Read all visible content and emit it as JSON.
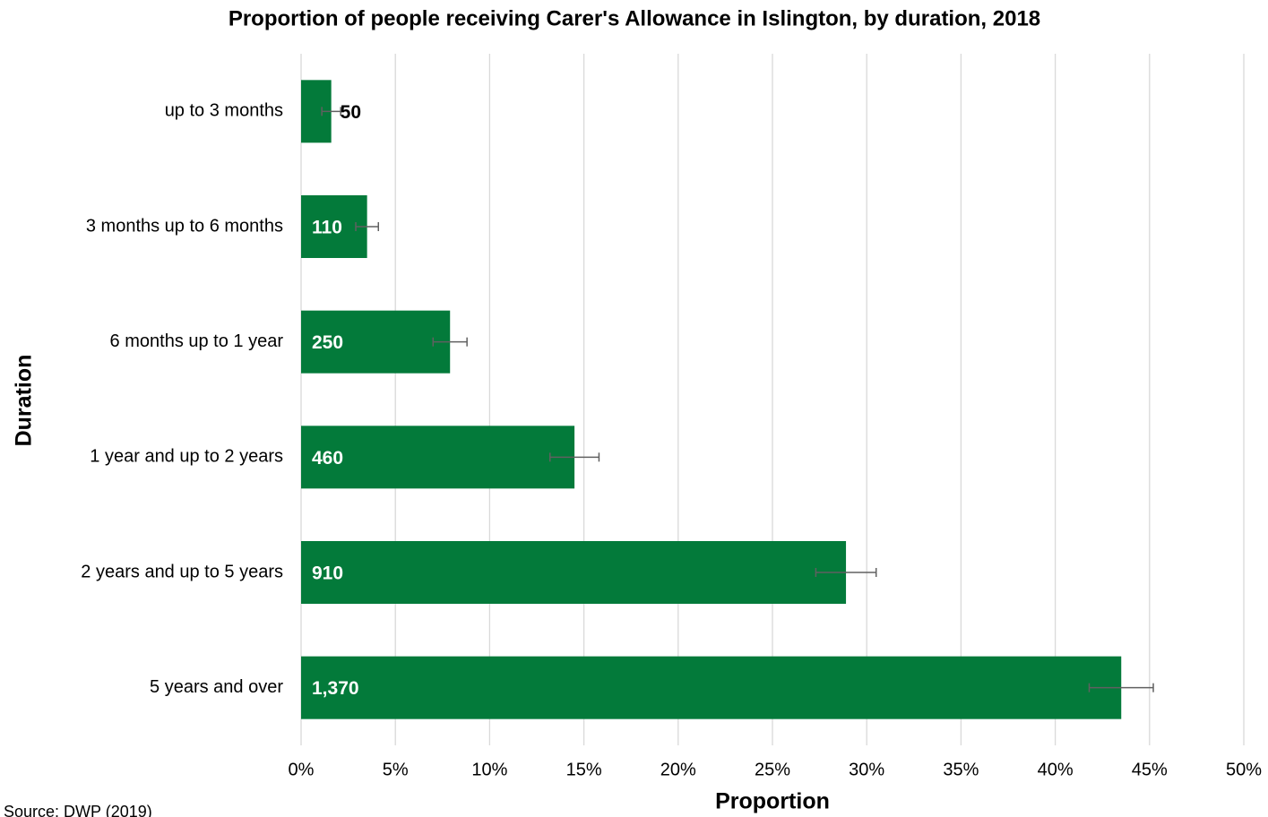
{
  "chart_data": {
    "type": "hbar",
    "title": "Proportion of people receiving Carer's Allowance in Islington, by duration, 2018",
    "x_label": "Proportion",
    "y_label": "Duration",
    "source": "Source: DWP (2019)",
    "categories": [
      "up to 3 months",
      "3 months up to 6 months",
      "6 months up to 1 year",
      "1 year and up to 2 years",
      "2 years and up to 5 years",
      "5 years and over"
    ],
    "values": [
      1.6,
      3.5,
      7.9,
      14.5,
      28.9,
      43.5
    ],
    "errors": [
      0.5,
      0.6,
      0.9,
      1.3,
      1.6,
      1.7
    ],
    "bar_labels": [
      50,
      110,
      250,
      460,
      910,
      {
        "value": 1370,
        "label": "1,370"
      }
    ],
    "color": "#037a3a",
    "error_color": "#606060",
    "xlim": [
      0,
      50
    ],
    "xticks": [
      {
        "value": 0,
        "label": "0%"
      },
      {
        "value": 5,
        "label": "5%"
      },
      {
        "value": 10,
        "label": "10%"
      },
      {
        "value": 15,
        "label": "15%"
      },
      {
        "value": 20,
        "label": "20%"
      },
      {
        "value": 25,
        "label": "25%"
      },
      {
        "value": 30,
        "label": "30%"
      },
      {
        "value": 35,
        "label": "35%"
      },
      {
        "value": 40,
        "label": "40%"
      },
      {
        "value": 45,
        "label": "45%"
      },
      {
        "value": 50,
        "label": "50%"
      }
    ],
    "grid": true
  }
}
